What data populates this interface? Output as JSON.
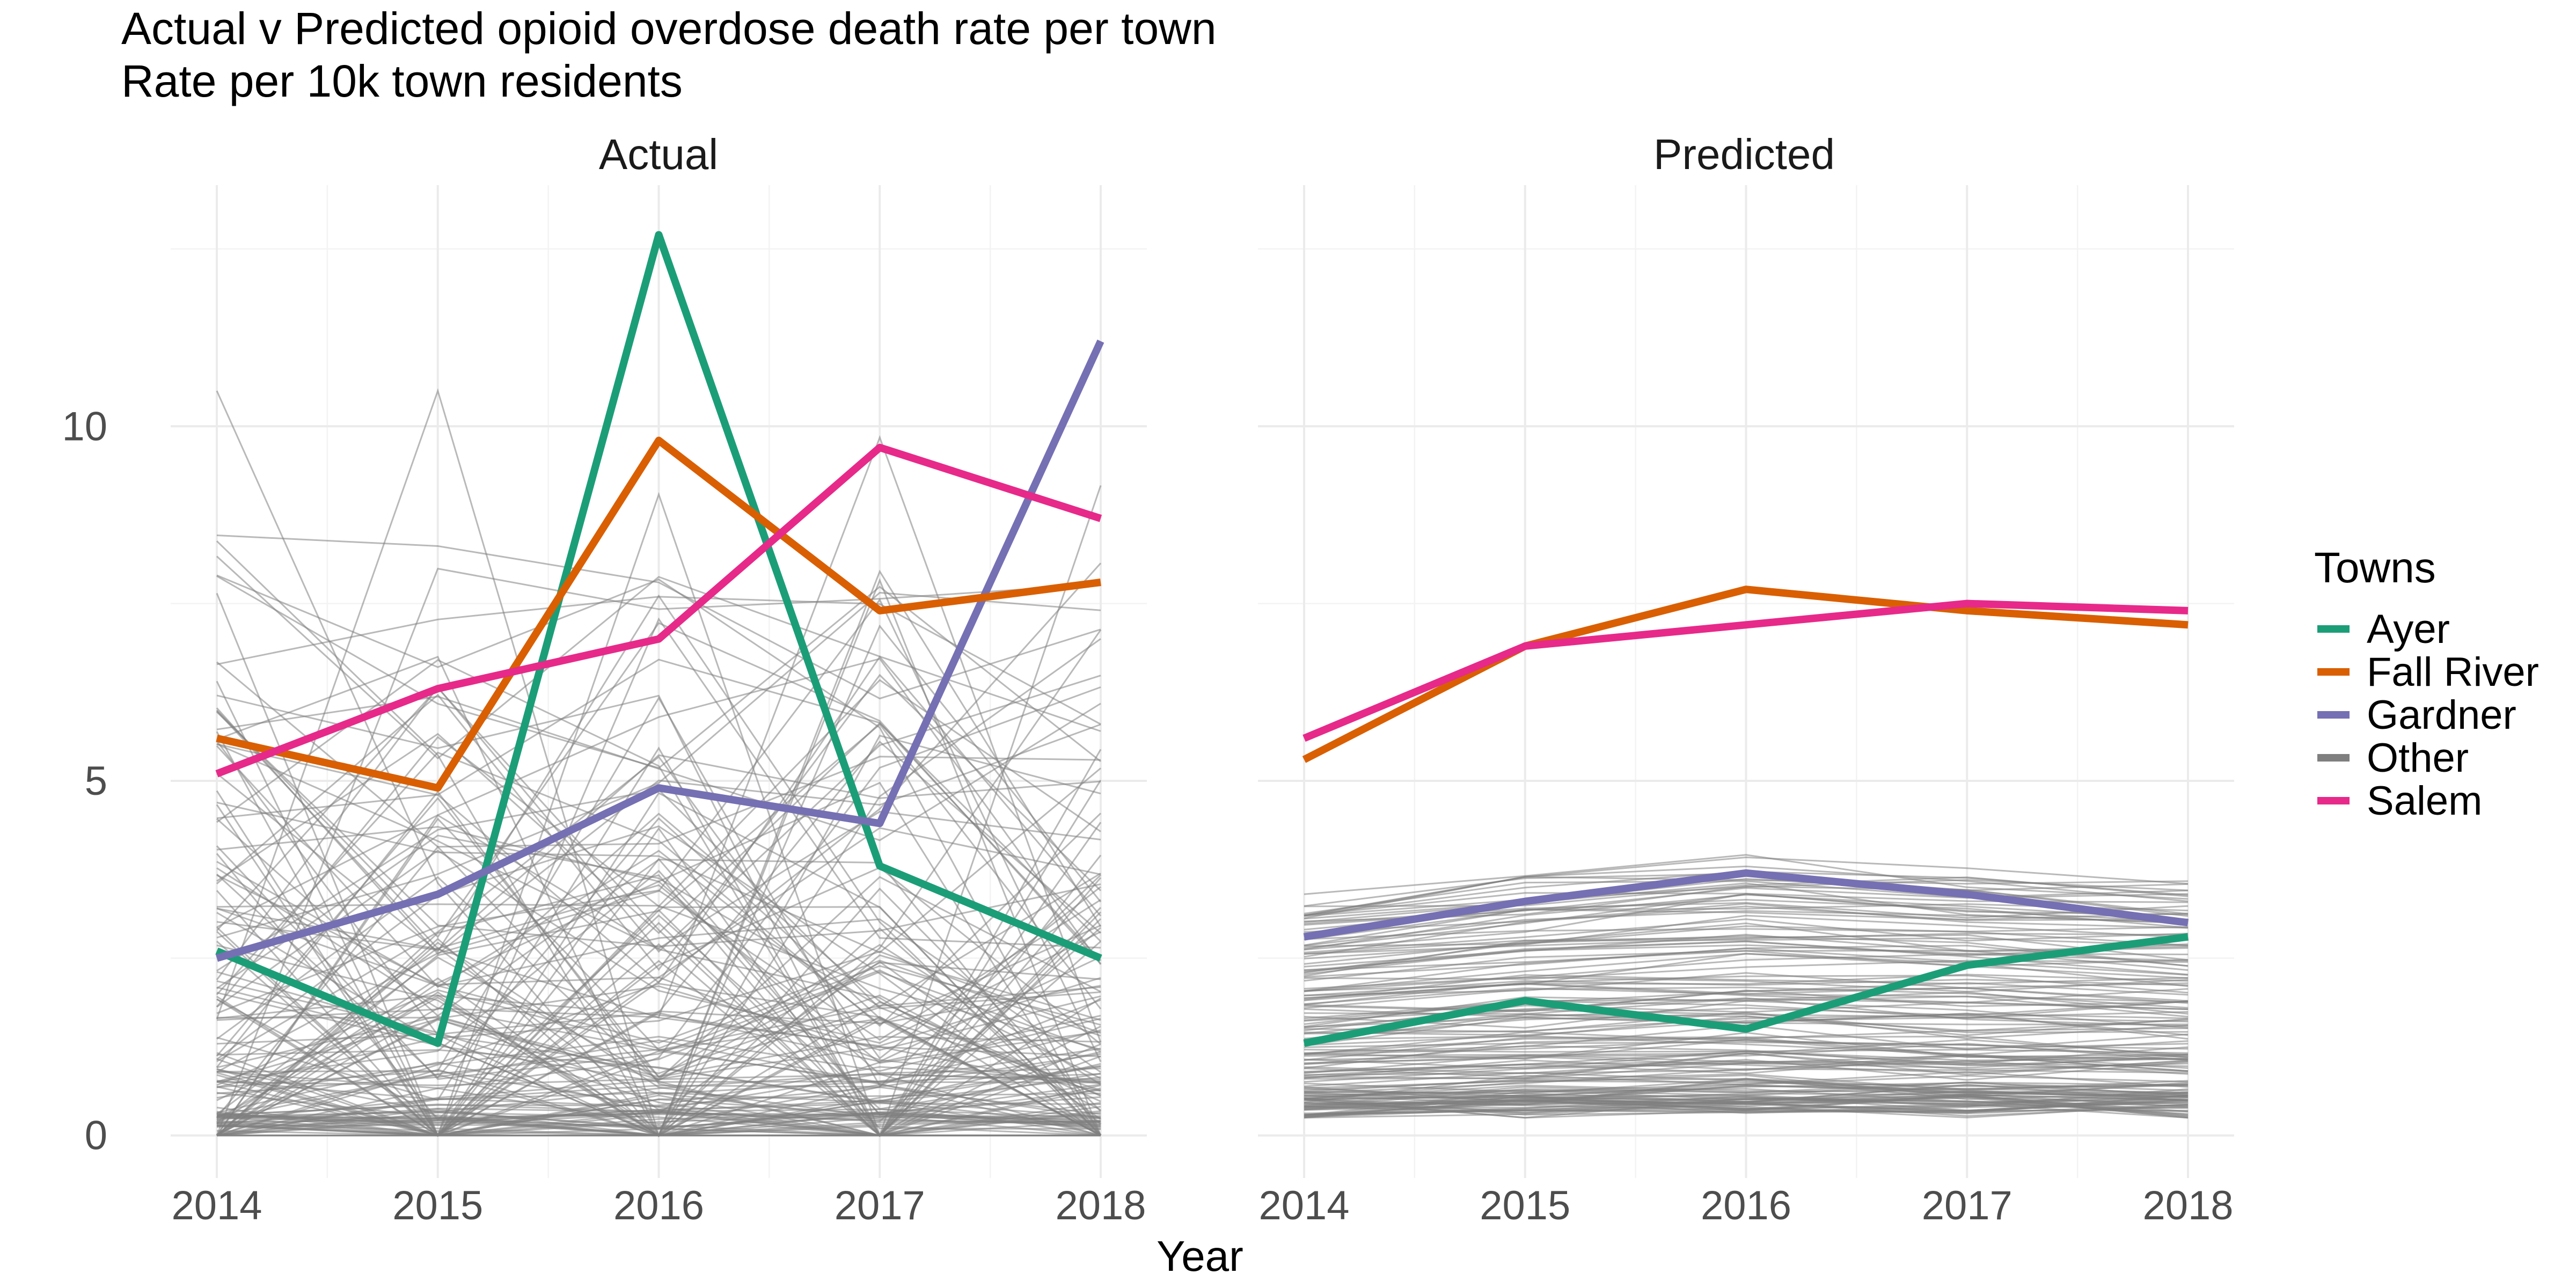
{
  "chart_data": {
    "type": "line",
    "title": "Actual v Predicted opioid overdose death rate per town",
    "subtitle": "Rate per 10k town residents",
    "xlabel": "Year",
    "ylabel": "",
    "x": [
      2014,
      2015,
      2016,
      2017,
      2018
    ],
    "x_ticks": [
      "2014",
      "2015",
      "2016",
      "2017",
      "2018"
    ],
    "ylim": [
      -0.6,
      13.4
    ],
    "y_ticks": [
      0,
      5,
      10
    ],
    "y_tick_labels": [
      "0",
      "5",
      "10"
    ],
    "grid": true,
    "legend": {
      "title": "Towns",
      "placement": "right",
      "entries": [
        {
          "name": "Ayer",
          "color": "#1b9e77"
        },
        {
          "name": "Fall River",
          "color": "#d95f02"
        },
        {
          "name": "Gardner",
          "color": "#7570b3"
        },
        {
          "name": "Other",
          "color": "#7f7f7f"
        },
        {
          "name": "Salem",
          "color": "#e7298a"
        }
      ]
    },
    "panels": [
      {
        "label": "Actual",
        "series": [
          {
            "name": "Ayer",
            "color": "#1b9e77",
            "values": [
              2.6,
              1.3,
              12.7,
              3.8,
              2.5
            ]
          },
          {
            "name": "Fall River",
            "color": "#d95f02",
            "values": [
              5.6,
              4.9,
              9.8,
              7.4,
              7.8
            ]
          },
          {
            "name": "Gardner",
            "color": "#7570b3",
            "values": [
              2.5,
              3.4,
              4.9,
              4.4,
              11.2
            ]
          },
          {
            "name": "Salem",
            "color": "#e7298a",
            "values": [
              5.1,
              6.3,
              7.0,
              9.7,
              8.7
            ]
          }
        ]
      },
      {
        "label": "Predicted",
        "series": [
          {
            "name": "Ayer",
            "color": "#1b9e77",
            "values": [
              1.3,
              1.9,
              1.5,
              2.4,
              2.8
            ]
          },
          {
            "name": "Fall River",
            "color": "#d95f02",
            "values": [
              5.3,
              6.9,
              7.7,
              7.4,
              7.2
            ]
          },
          {
            "name": "Gardner",
            "color": "#7570b3",
            "values": [
              2.8,
              3.3,
              3.7,
              3.4,
              3.0
            ]
          },
          {
            "name": "Salem",
            "color": "#e7298a",
            "values": [
              5.6,
              6.9,
              7.2,
              7.5,
              7.4
            ]
          }
        ]
      }
    ],
    "other_towns_note_count": 160
  }
}
